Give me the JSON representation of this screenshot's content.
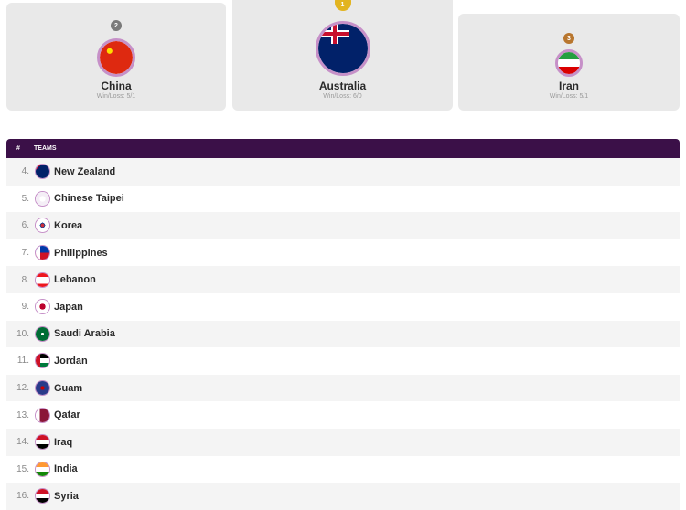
{
  "podium": [
    {
      "rank": "2",
      "name": "China",
      "record": "Win/Loss: 5/1",
      "medal_color": "#7a7a7a",
      "flag": "china-flag-icon"
    },
    {
      "rank": "1",
      "name": "Australia",
      "record": "Win/Loss: 6/0",
      "medal_color": "#e2b420",
      "flag": "australia-flag-icon"
    },
    {
      "rank": "3",
      "name": "Iran",
      "record": "Win/Loss: 5/1",
      "medal_color": "#b8762e",
      "flag": "iran-flag-icon"
    }
  ],
  "table": {
    "col_rank": "#",
    "col_teams": "TEAMS",
    "rows": [
      {
        "rank": "4.",
        "name": "New Zealand"
      },
      {
        "rank": "5.",
        "name": "Chinese Taipei"
      },
      {
        "rank": "6.",
        "name": "Korea"
      },
      {
        "rank": "7.",
        "name": "Philippines"
      },
      {
        "rank": "8.",
        "name": "Lebanon"
      },
      {
        "rank": "9.",
        "name": "Japan"
      },
      {
        "rank": "10.",
        "name": "Saudi Arabia"
      },
      {
        "rank": "11.",
        "name": "Jordan"
      },
      {
        "rank": "12.",
        "name": "Guam"
      },
      {
        "rank": "13.",
        "name": "Qatar"
      },
      {
        "rank": "14.",
        "name": "Iraq"
      },
      {
        "rank": "15.",
        "name": "India"
      },
      {
        "rank": "16.",
        "name": "Syria"
      }
    ]
  },
  "colors": {
    "header": "#3b1048",
    "accent_ring": "#c690c8"
  }
}
